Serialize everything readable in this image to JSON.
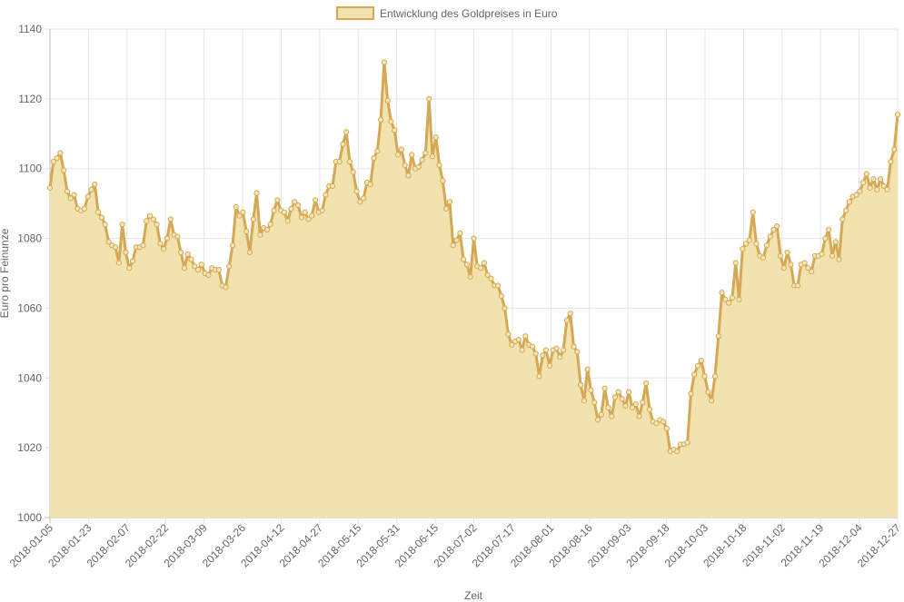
{
  "chart_data": {
    "type": "area",
    "xlabel": "Zeit",
    "ylabel": "Euro pro Feinunze",
    "ylim": [
      1000,
      1140
    ],
    "y_ticks": [
      1000,
      1020,
      1040,
      1060,
      1080,
      1100,
      1120,
      1140
    ],
    "x_tick_labels": [
      "2018-01-05",
      "2018-01-23",
      "2018-02-07",
      "2018-02-22",
      "2018-03-09",
      "2018-03-26",
      "2018-04-12",
      "2018-04-27",
      "2018-05-15",
      "2018-05-31",
      "2018-06-15",
      "2018-07-02",
      "2018-07-17",
      "2018-08-01",
      "2018-08-16",
      "2018-09-03",
      "2018-09-18",
      "2018-10-03",
      "2018-10-18",
      "2018-11-02",
      "2018-11-19",
      "2018-12-04",
      "2018-12-27"
    ],
    "grid": true,
    "legend_position": "top-center",
    "series": [
      {
        "name": "Entwicklung des Goldpreises in Euro",
        "line_color": "#d4a855",
        "fill_color": "#f2e2ae",
        "values": [
          1094.5,
          1102.0,
          1103.0,
          1104.5,
          1099.5,
          1093.5,
          1091.5,
          1092.5,
          1088.5,
          1088.0,
          1088.5,
          1092.0,
          1094.0,
          1095.5,
          1087.5,
          1086.0,
          1084.0,
          1079.0,
          1078.0,
          1077.5,
          1073.0,
          1084.0,
          1076.0,
          1071.5,
          1073.5,
          1077.5,
          1077.5,
          1078.0,
          1085.0,
          1086.5,
          1085.5,
          1084.0,
          1078.5,
          1077.0,
          1080.0,
          1085.5,
          1081.0,
          1080.5,
          1076.0,
          1071.5,
          1075.5,
          1074.0,
          1072.0,
          1071.0,
          1072.5,
          1070.0,
          1069.5,
          1071.5,
          1071.0,
          1071.0,
          1066.5,
          1066.0,
          1072.0,
          1078.0,
          1089.0,
          1086.5,
          1087.5,
          1082.0,
          1076.0,
          1085.5,
          1093.0,
          1081.0,
          1083.0,
          1082.5,
          1084.0,
          1088.0,
          1091.0,
          1088.0,
          1087.5,
          1085.0,
          1088.5,
          1090.5,
          1089.5,
          1086.0,
          1087.5,
          1085.5,
          1086.5,
          1091.0,
          1087.5,
          1088.0,
          1092.5,
          1095.0,
          1095.0,
          1102.0,
          1102.0,
          1107.0,
          1110.5,
          1102.0,
          1099.0,
          1093.5,
          1090.5,
          1091.5,
          1096.0,
          1095.5,
          1103.0,
          1105.0,
          1114.0,
          1130.5,
          1119.5,
          1113.5,
          1111.0,
          1104.0,
          1105.5,
          1101.0,
          1098.0,
          1104.0,
          1100.0,
          1100.5,
          1102.5,
          1104.5,
          1120.0,
          1103.5,
          1109.0,
          1101.0,
          1096.5,
          1088.5,
          1090.5,
          1078.0,
          1079.5,
          1081.5,
          1074.0,
          1072.5,
          1069.0,
          1080.0,
          1072.0,
          1071.5,
          1073.0,
          1069.5,
          1068.5,
          1066.5,
          1066.5,
          1063.5,
          1060.0,
          1052.5,
          1049.5,
          1050.5,
          1051.0,
          1048.0,
          1052.0,
          1049.5,
          1049.0,
          1047.0,
          1040.5,
          1046.5,
          1048.0,
          1043.5,
          1048.0,
          1048.5,
          1046.0,
          1048.0,
          1056.5,
          1058.5,
          1049.0,
          1047.5,
          1038.0,
          1033.5,
          1042.5,
          1036.5,
          1033.0,
          1028.0,
          1029.5,
          1037.0,
          1031.5,
          1029.0,
          1034.5,
          1036.0,
          1034.0,
          1032.0,
          1036.0,
          1031.5,
          1032.5,
          1029.0,
          1033.0,
          1038.5,
          1031.0,
          1027.5,
          1027.0,
          1028.0,
          1027.5,
          1025.5,
          1019.0,
          1019.5,
          1019.0,
          1021.0,
          1021.0,
          1021.5,
          1035.5,
          1041.0,
          1043.5,
          1045.0,
          1040.5,
          1036.0,
          1033.5,
          1040.5,
          1052.0,
          1064.5,
          1062.5,
          1061.5,
          1063.0,
          1073.0,
          1062.5,
          1077.0,
          1078.5,
          1079.5,
          1087.5,
          1078.5,
          1075.0,
          1074.5,
          1078.0,
          1080.5,
          1082.5,
          1083.5,
          1075.0,
          1071.5,
          1076.0,
          1072.5,
          1066.5,
          1066.5,
          1072.5,
          1073.0,
          1071.5,
          1070.5,
          1075.0,
          1075.0,
          1075.5,
          1080.0,
          1082.5,
          1075.0,
          1079.0,
          1074.0,
          1085.5,
          1088.0,
          1090.5,
          1092.0,
          1092.5,
          1093.5,
          1096.0,
          1098.5,
          1094.5,
          1097.0,
          1094.0,
          1097.0,
          1095.0,
          1094.0,
          1102.0,
          1105.5,
          1115.5
        ]
      }
    ]
  }
}
